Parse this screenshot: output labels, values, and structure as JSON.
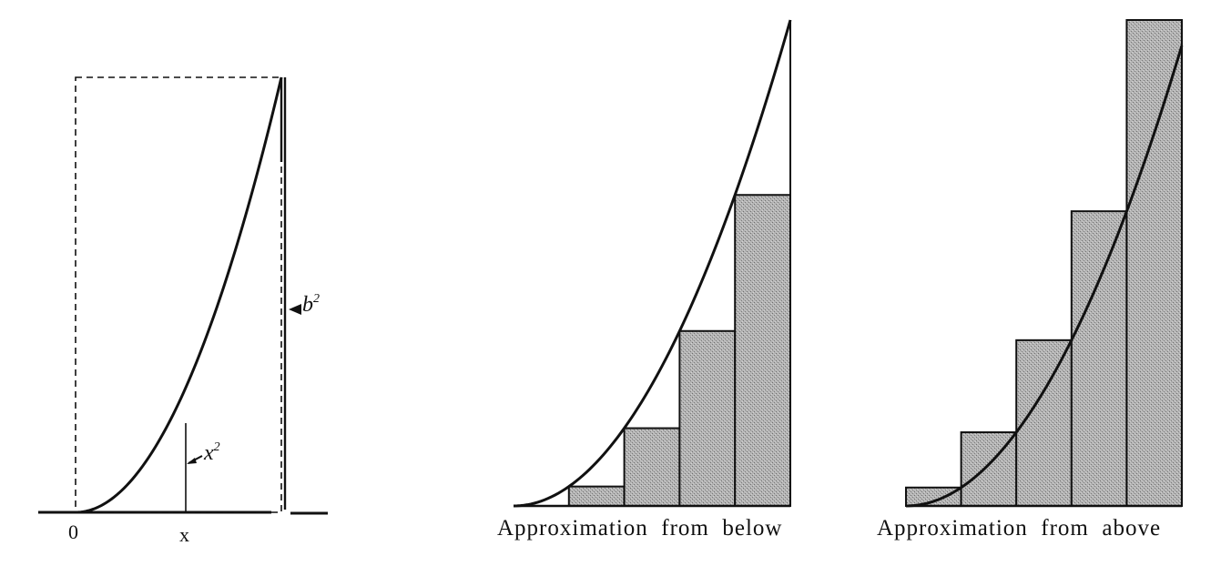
{
  "panel_left": {
    "origin_label": "0",
    "x_label": "x",
    "curve_label": "x",
    "curve_label_exp": "2",
    "height_label": "b",
    "height_label_exp": "2"
  },
  "panel_below": {
    "caption": "Approximation  from  below",
    "rect_count": 4
  },
  "panel_above": {
    "caption": "Approximation  from  above",
    "rect_count": 5
  },
  "colors": {
    "ink": "#111111",
    "shade": "#a9a9a9"
  }
}
